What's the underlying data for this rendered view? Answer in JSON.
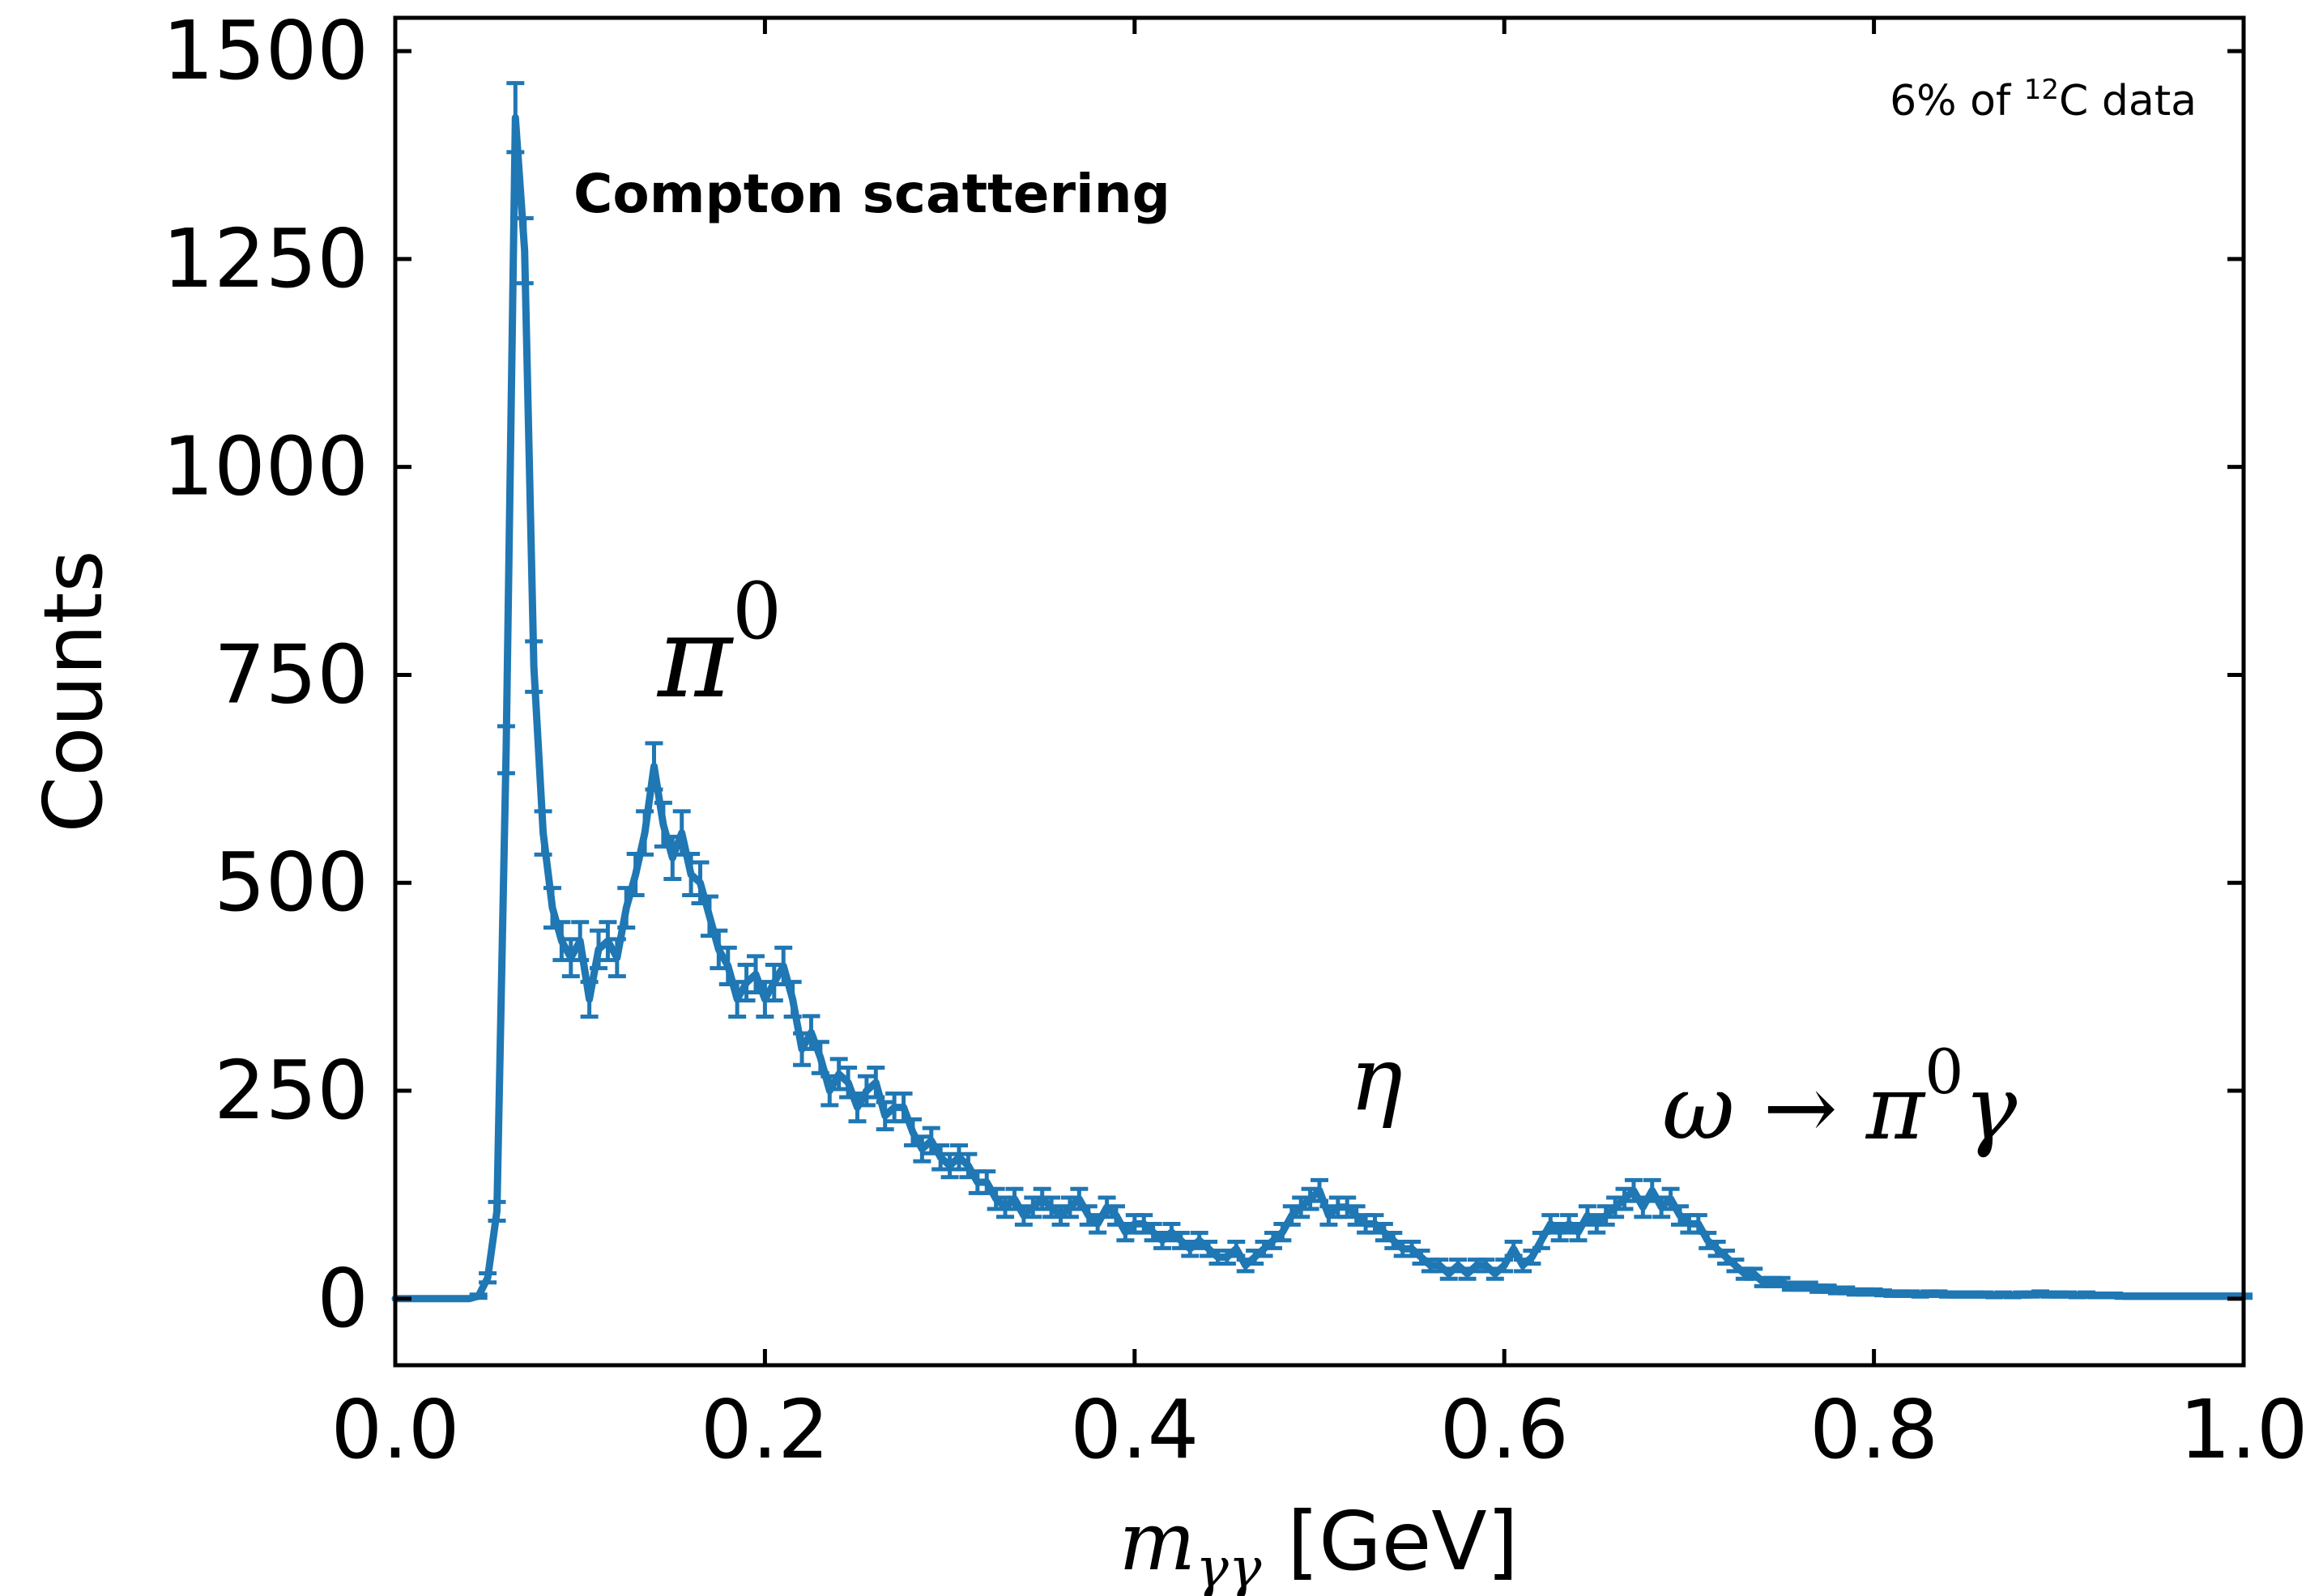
{
  "chart_data": {
    "type": "line",
    "xlabel_main": "m",
    "xlabel_sub": "γγ",
    "xlabel_unit": " [GeV]",
    "ylabel": "Counts",
    "xlim": [
      0.0,
      1.0
    ],
    "ylim": [
      -80,
      1540
    ],
    "xticks": [
      "0.0",
      "0.2",
      "0.4",
      "0.6",
      "0.8",
      "1.0"
    ],
    "yticks": [
      "0",
      "250",
      "500",
      "750",
      "1000",
      "1250",
      "1500"
    ],
    "grid": false,
    "color": "#1f77b4",
    "annotations": {
      "compton": "Compton scattering",
      "subset_prefix": "6% of ",
      "subset_sup": "12",
      "subset_suffix": "C data",
      "pi0_main": "π",
      "pi0_sup": "0",
      "eta": "η",
      "omega_main": "ω → π",
      "omega_sup": "0",
      "omega_end": "γ"
    },
    "x": [
      0.0,
      0.005,
      0.01,
      0.015,
      0.02,
      0.025,
      0.03,
      0.035,
      0.04,
      0.045,
      0.05,
      0.055,
      0.06,
      0.065,
      0.07,
      0.075,
      0.08,
      0.085,
      0.09,
      0.095,
      0.1,
      0.105,
      0.11,
      0.115,
      0.12,
      0.125,
      0.13,
      0.135,
      0.14,
      0.145,
      0.15,
      0.155,
      0.16,
      0.165,
      0.17,
      0.175,
      0.18,
      0.185,
      0.19,
      0.195,
      0.2,
      0.205,
      0.21,
      0.215,
      0.22,
      0.225,
      0.23,
      0.235,
      0.24,
      0.245,
      0.25,
      0.255,
      0.26,
      0.265,
      0.27,
      0.275,
      0.28,
      0.285,
      0.29,
      0.295,
      0.3,
      0.305,
      0.31,
      0.315,
      0.32,
      0.325,
      0.33,
      0.335,
      0.34,
      0.345,
      0.35,
      0.355,
      0.36,
      0.365,
      0.37,
      0.375,
      0.38,
      0.385,
      0.39,
      0.395,
      0.4,
      0.405,
      0.41,
      0.415,
      0.42,
      0.425,
      0.43,
      0.435,
      0.44,
      0.445,
      0.45,
      0.455,
      0.46,
      0.465,
      0.47,
      0.475,
      0.48,
      0.485,
      0.49,
      0.495,
      0.5,
      0.505,
      0.51,
      0.515,
      0.52,
      0.525,
      0.53,
      0.535,
      0.54,
      0.545,
      0.55,
      0.555,
      0.56,
      0.565,
      0.57,
      0.575,
      0.58,
      0.585,
      0.59,
      0.595,
      0.6,
      0.605,
      0.61,
      0.615,
      0.62,
      0.625,
      0.63,
      0.635,
      0.64,
      0.645,
      0.65,
      0.655,
      0.66,
      0.665,
      0.67,
      0.675,
      0.68,
      0.685,
      0.69,
      0.695,
      0.7,
      0.705,
      0.71,
      0.715,
      0.72,
      0.725,
      0.73,
      0.735,
      0.74,
      0.745,
      0.75,
      0.755,
      0.76,
      0.765,
      0.77,
      0.775,
      0.78,
      0.785,
      0.79,
      0.795,
      0.8,
      0.805,
      0.81,
      0.815,
      0.82,
      0.825,
      0.83,
      0.835,
      0.84,
      0.845,
      0.85,
      0.855,
      0.86,
      0.865,
      0.87,
      0.875,
      0.88,
      0.885,
      0.89,
      0.895,
      0.9,
      0.905,
      0.91,
      0.915,
      0.92,
      0.925,
      0.93,
      0.935,
      0.94,
      0.945,
      0.95,
      0.955,
      0.96,
      0.965,
      0.97,
      0.975,
      0.98,
      0.985,
      0.99,
      0.995,
      1.0
    ],
    "y": [
      0,
      0,
      0,
      0,
      0,
      0,
      0,
      0,
      0,
      3,
      25,
      105,
      660,
      1420,
      1260,
      760,
      560,
      470,
      430,
      410,
      430,
      360,
      420,
      430,
      410,
      470,
      510,
      560,
      640,
      570,
      530,
      560,
      510,
      500,
      460,
      420,
      400,
      360,
      380,
      390,
      360,
      380,
      400,
      360,
      300,
      320,
      290,
      250,
      270,
      260,
      230,
      250,
      260,
      220,
      230,
      230,
      200,
      180,
      190,
      170,
      160,
      170,
      160,
      140,
      140,
      120,
      110,
      120,
      100,
      110,
      120,
      110,
      100,
      110,
      120,
      100,
      90,
      110,
      100,
      80,
      90,
      90,
      80,
      70,
      80,
      70,
      60,
      70,
      60,
      50,
      50,
      60,
      40,
      50,
      60,
      70,
      80,
      100,
      110,
      120,
      130,
      100,
      110,
      110,
      100,
      90,
      90,
      80,
      70,
      60,
      60,
      50,
      40,
      40,
      30,
      40,
      30,
      40,
      40,
      30,
      40,
      60,
      40,
      50,
      70,
      90,
      80,
      90,
      80,
      100,
      90,
      100,
      110,
      120,
      130,
      110,
      130,
      110,
      120,
      100,
      90,
      90,
      70,
      60,
      50,
      40,
      30,
      30,
      20,
      20,
      20,
      15,
      15,
      15,
      12,
      12,
      10,
      10,
      8,
      8,
      8,
      7,
      6,
      6,
      6,
      5,
      6,
      6,
      5,
      5,
      5,
      5,
      5,
      4,
      5,
      4,
      5,
      5,
      6,
      5,
      5,
      5,
      4,
      5,
      4,
      4,
      4,
      3,
      3,
      3,
      3,
      3,
      3,
      3,
      3,
      3,
      3,
      3,
      3,
      3,
      3
    ]
  }
}
